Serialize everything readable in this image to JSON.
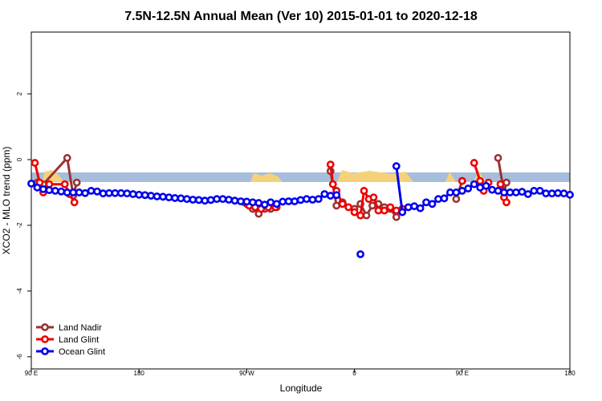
{
  "chart_data": {
    "type": "line",
    "title": "7.5N-12.5N Annual Mean (Ver 10)   2015-01-01 to 2020-12-18",
    "x_label": "Longitude",
    "y_label": "XCO2 - MLO trend (ppm)",
    "xlim": [
      90,
      540
    ],
    "ylim": [
      -6.37,
      3.88
    ],
    "xticks": [
      {
        "value": 90,
        "label": "90 E"
      },
      180,
      {
        "value": 270,
        "label": "90 W"
      },
      {
        "value": 360,
        "label": "0"
      },
      {
        "value": 450,
        "label": "90 E"
      },
      {
        "value": 540,
        "label": "180"
      }
    ],
    "yticks": [
      2,
      0,
      -2,
      -4,
      -6
    ],
    "legend": "bottom-left",
    "series": [
      {
        "name": "Land Nadir",
        "color": "#993333",
        "x": [
          95,
          100,
          120,
          125,
          128,
          200,
          270,
          275,
          280,
          285,
          290,
          295,
          320,
          340,
          345,
          350,
          360,
          365,
          370,
          375,
          380,
          385,
          390,
          395,
          440,
          445,
          450,
          470,
          480,
          485,
          487
        ],
        "values": [
          -0.7,
          -0.75,
          0.05,
          -1.1,
          -0.7,
          null,
          -1.35,
          -1.5,
          -1.65,
          -1.5,
          -1.5,
          -1.45,
          null,
          -0.35,
          -1.4,
          -1.3,
          -1.5,
          -1.35,
          -1.7,
          -1.4,
          -1.35,
          -1.45,
          -1.5,
          -1.75,
          null,
          -1.2,
          -0.65,
          null,
          0.05,
          -1.0,
          -0.7
        ]
      },
      {
        "name": "Land Glint",
        "color": "#ee0000",
        "x": [
          93,
          97,
          100,
          105,
          118,
          122,
          126,
          200,
          268,
          272,
          277,
          282,
          288,
          294,
          320,
          340,
          342,
          345,
          350,
          355,
          360,
          365,
          368,
          372,
          376,
          380,
          385,
          390,
          395,
          400,
          440,
          450,
          455,
          460,
          465,
          468,
          472,
          477,
          482,
          485,
          487
        ],
        "values": [
          -0.1,
          -0.7,
          -1.0,
          -0.75,
          -0.75,
          -1.05,
          -1.3,
          null,
          -1.3,
          -1.4,
          -1.45,
          -1.5,
          -1.45,
          -1.45,
          null,
          -0.15,
          -0.75,
          -0.95,
          -1.35,
          -1.45,
          -1.6,
          -1.7,
          -0.95,
          -1.2,
          -1.15,
          -1.55,
          -1.55,
          -1.45,
          -1.55,
          -1.5,
          null,
          -0.65,
          null,
          -0.1,
          -0.65,
          -0.95,
          -0.7,
          null,
          -0.75,
          -1.15,
          -1.3
        ]
      },
      {
        "name": "Ocean Glint",
        "color": "#0000ee",
        "x": [
          90,
          95,
          100,
          105,
          110,
          115,
          120,
          125,
          130,
          135,
          140,
          145,
          150,
          155,
          160,
          165,
          170,
          175,
          180,
          185,
          190,
          195,
          200,
          205,
          210,
          215,
          220,
          225,
          230,
          235,
          240,
          245,
          250,
          255,
          260,
          265,
          270,
          275,
          280,
          285,
          290,
          295,
          300,
          305,
          310,
          315,
          320,
          325,
          330,
          335,
          340,
          345,
          350,
          355,
          360,
          365,
          370,
          375,
          380,
          385,
          390,
          395,
          400,
          405,
          410,
          415,
          420,
          425,
          430,
          435,
          440,
          445,
          450,
          455,
          460,
          465,
          470,
          475,
          480,
          485,
          490,
          495,
          500,
          505,
          510,
          515,
          520,
          525,
          530,
          535,
          540
        ],
        "values": [
          -0.73,
          -0.85,
          -0.9,
          -0.93,
          -0.95,
          -0.97,
          -1.0,
          -1.0,
          -1.0,
          -1.02,
          -0.95,
          -0.97,
          -1.03,
          -1.02,
          -1.02,
          -1.02,
          -1.03,
          -1.05,
          -1.07,
          -1.08,
          -1.1,
          -1.12,
          -1.13,
          -1.15,
          -1.17,
          -1.18,
          -1.2,
          -1.22,
          -1.23,
          -1.25,
          -1.23,
          -1.2,
          -1.2,
          -1.22,
          -1.25,
          -1.27,
          -1.28,
          -1.3,
          -1.32,
          -1.37,
          -1.3,
          -1.35,
          -1.28,
          -1.27,
          -1.27,
          -1.23,
          -1.2,
          -1.22,
          -1.2,
          -1.05,
          -1.1,
          -1.08,
          null,
          null,
          null,
          -2.88,
          null,
          null,
          null,
          null,
          null,
          -0.2,
          -1.6,
          -1.45,
          -1.42,
          -1.48,
          -1.3,
          -1.35,
          -1.2,
          -1.18,
          -1.0,
          -1.0,
          -0.95,
          -0.88,
          -0.75,
          -0.85,
          -0.8,
          -0.92,
          -0.95,
          -1.0,
          -1.0,
          -1.0,
          -0.98,
          -1.05,
          -0.95,
          -0.95,
          -1.03,
          -1.03,
          -1.02,
          -1.03,
          -1.07
        ]
      }
    ]
  }
}
